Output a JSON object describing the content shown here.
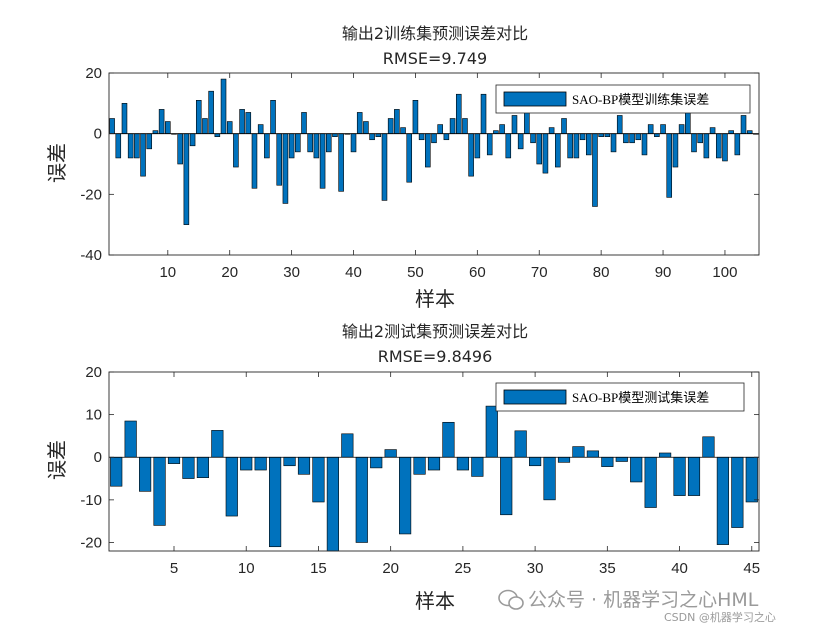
{
  "chart_data": [
    {
      "type": "bar",
      "title": "输出2训练集预测误差对比",
      "subtitle": "RMSE=9.749",
      "xlabel": "样本",
      "ylabel": "误差",
      "xlim": [
        0.5,
        105.5
      ],
      "ylim": [
        -40,
        20
      ],
      "xticks": [
        10,
        20,
        30,
        40,
        50,
        60,
        70,
        80,
        90,
        100
      ],
      "yticks": [
        -40,
        -20,
        0,
        20
      ],
      "legend": "top-right",
      "grid": false,
      "series": [
        {
          "name": "SAO-BP模型训练集误差",
          "color": "#0072BD",
          "x": [
            1,
            2,
            3,
            4,
            5,
            6,
            7,
            8,
            9,
            10,
            11,
            12,
            13,
            14,
            15,
            16,
            17,
            18,
            19,
            20,
            21,
            22,
            23,
            24,
            25,
            26,
            27,
            28,
            29,
            30,
            31,
            32,
            33,
            34,
            35,
            36,
            37,
            38,
            39,
            40,
            41,
            42,
            43,
            44,
            45,
            46,
            47,
            48,
            49,
            50,
            51,
            52,
            53,
            54,
            55,
            56,
            57,
            58,
            59,
            60,
            61,
            62,
            63,
            64,
            65,
            66,
            67,
            68,
            69,
            70,
            71,
            72,
            73,
            74,
            75,
            76,
            77,
            78,
            79,
            80,
            81,
            82,
            83,
            84,
            85,
            86,
            87,
            88,
            89,
            90,
            91,
            92,
            93,
            94,
            95,
            96,
            97,
            98,
            99,
            100,
            101,
            102,
            103,
            104,
            105
          ],
          "values": [
            5,
            -8,
            10,
            -8,
            -8,
            -14,
            -5,
            1,
            8,
            4,
            0,
            -10,
            -30,
            -4,
            11,
            5,
            14,
            -1,
            18,
            4,
            -11,
            8,
            7,
            -18,
            3,
            -8,
            11,
            -17,
            -23,
            -8,
            -6,
            7,
            -6,
            -8,
            -18,
            -6,
            -1,
            -19,
            0,
            -6,
            7,
            4,
            -2,
            -1,
            -22,
            5,
            8,
            2,
            -16,
            11,
            -2,
            -11,
            -3,
            3,
            -2,
            5,
            13,
            5,
            -14,
            -8,
            13,
            -7,
            1,
            3,
            -8,
            6,
            -5,
            7,
            -3,
            -10,
            -13,
            2,
            -11,
            5,
            -8,
            -8,
            -2,
            -7,
            -24,
            -1,
            -1,
            -6,
            6,
            -3,
            -3,
            -2,
            -7,
            3,
            -1,
            3,
            -21,
            -11,
            3,
            8,
            -6,
            -3,
            -8,
            2,
            -8,
            -9,
            1,
            -7,
            6,
            1,
            0
          ]
        }
      ]
    },
    {
      "type": "bar",
      "title": "输出2测试集预测误差对比",
      "subtitle": "RMSE=9.8496",
      "xlabel": "样本",
      "ylabel": "误差",
      "xlim": [
        0.5,
        45.5
      ],
      "ylim": [
        -22,
        20
      ],
      "xticks": [
        5,
        10,
        15,
        20,
        25,
        30,
        35,
        40,
        45
      ],
      "yticks": [
        -20,
        -10,
        0,
        10,
        20
      ],
      "legend": "top-right",
      "grid": false,
      "series": [
        {
          "name": "SAO-BP模型测试集误差",
          "color": "#0072BD",
          "x": [
            1,
            2,
            3,
            4,
            5,
            6,
            7,
            8,
            9,
            10,
            11,
            12,
            13,
            14,
            15,
            16,
            17,
            18,
            19,
            20,
            21,
            22,
            23,
            24,
            25,
            26,
            27,
            28,
            29,
            30,
            31,
            32,
            33,
            34,
            35,
            36,
            37,
            38,
            39,
            40,
            41,
            42,
            43,
            44,
            45
          ],
          "values": [
            -6.8,
            8.5,
            -8,
            -16,
            -1.5,
            -5,
            -4.8,
            6.3,
            -13.8,
            -3,
            -3,
            -21,
            -2,
            -4,
            -10.5,
            -22,
            5.5,
            -20,
            -2.5,
            1.8,
            -18,
            -4,
            -3,
            8.2,
            -3,
            -4.5,
            12,
            -13.5,
            6.2,
            -2,
            -10,
            -1.2,
            2.5,
            1.5,
            -2.2,
            -1,
            -5.8,
            -11.8,
            1,
            -9,
            -9,
            4.8,
            -20.5,
            -16.5,
            -10.5
          ]
        }
      ]
    }
  ],
  "watermark": {
    "main": "公众号 · 机器学习之心HML",
    "sub": "CSDN @机器学习之心"
  }
}
